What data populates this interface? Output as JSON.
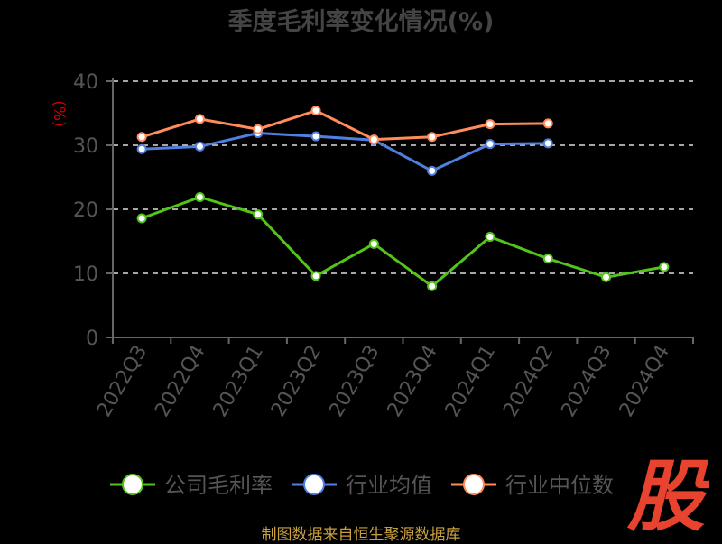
{
  "chart_data": {
    "type": "line",
    "title": "季度毛利率变化情况(%)",
    "ylabel": "(%)",
    "xlabel": "",
    "ylim": [
      0,
      40
    ],
    "yticks": [
      0,
      10,
      20,
      30,
      40
    ],
    "grid": true,
    "legend_position": "bottom",
    "categories": [
      "2022Q3",
      "2022Q4",
      "2023Q1",
      "2023Q2",
      "2023Q3",
      "2023Q4",
      "2024Q1",
      "2024Q2",
      "2024Q3",
      "2024Q4"
    ],
    "series": [
      {
        "name": "公司毛利率",
        "color": "#52c41a",
        "values": [
          18.6,
          21.9,
          19.2,
          9.6,
          14.6,
          8.0,
          15.7,
          12.3,
          9.4,
          11.0
        ]
      },
      {
        "name": "行业均值",
        "color": "#4f7fdf",
        "values": [
          29.4,
          29.8,
          31.9,
          31.4,
          30.8,
          26.0,
          30.2,
          30.3,
          null,
          null
        ]
      },
      {
        "name": "行业中位数",
        "color": "#ff8c5a",
        "values": [
          31.3,
          34.1,
          32.5,
          35.4,
          30.9,
          31.3,
          33.3,
          33.4,
          null,
          null
        ]
      }
    ]
  },
  "colors": {
    "background": "#000000",
    "title": "#444444",
    "axis": "#666666",
    "tick_label": "#555555",
    "ylabel": "#cc0000",
    "grid": "#dddddd",
    "footer": "#c8a040",
    "logo": "#e8432e"
  },
  "footer": {
    "source": "制图数据来自恒生聚源数据库"
  },
  "logo": {
    "text": "股",
    "icon": "gu-logo-icon"
  }
}
